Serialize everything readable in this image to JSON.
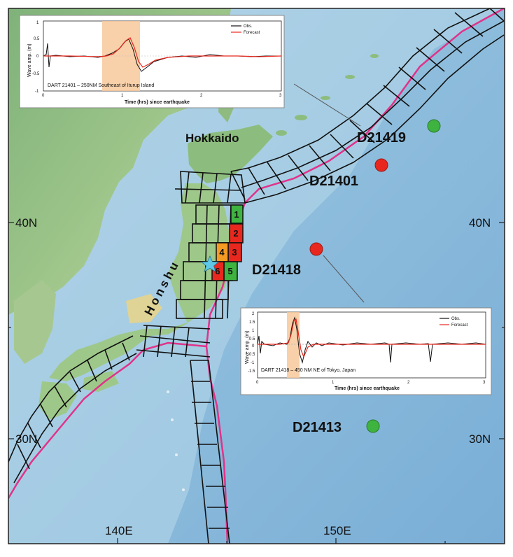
{
  "map": {
    "lat_labels_left": [
      "40N",
      "30N"
    ],
    "lat_labels_right": [
      "40N",
      "30N"
    ],
    "lon_labels_bottom": [
      "140E",
      "150E"
    ],
    "regions": {
      "hokkaido": "Hokkaido",
      "honshu": "Honshu"
    },
    "stations": [
      {
        "id": "D21419",
        "status": "green"
      },
      {
        "id": "D21401",
        "status": "red"
      },
      {
        "id": "D21418",
        "status": "red"
      },
      {
        "id": "D21413",
        "status": "green"
      }
    ],
    "source_segments": [
      {
        "label": "1",
        "color": "#3fb33f"
      },
      {
        "label": "2",
        "color": "#e8281e"
      },
      {
        "label": "3",
        "color": "#e8281e"
      },
      {
        "label": "4",
        "color": "#f59a23"
      },
      {
        "label": "5",
        "color": "#3fb33f"
      },
      {
        "label": "6",
        "color": "#e8281e"
      }
    ],
    "colors": {
      "station_green": "#3fb33f",
      "station_red": "#e8281e",
      "trench": "#e0338a",
      "epicenter": "#5ec8e6"
    },
    "epicenter_icon": "star-icon"
  },
  "inset_top": {
    "title": "DART 21401 – 250NM Southeast of Iturup Island",
    "ylabel": "Wave amp. (m)",
    "xlabel": "Time (hrs) since earthquake",
    "legend": [
      "Obs.",
      "Forecast"
    ],
    "xticks": [
      "0",
      "1",
      "2",
      "3"
    ],
    "yticks": [
      "1",
      "0.5",
      "0",
      "-0.5",
      "-1"
    ]
  },
  "inset_bottom": {
    "title": "DART 21418 – 450 NM NE of Tokyo, Japan",
    "ylabel": "Wave amp. (m)",
    "xlabel": "Time (hrs) since earthquake",
    "legend": [
      "Obs.",
      "Forecast"
    ],
    "xticks": [
      "0",
      "1",
      "2",
      "3"
    ],
    "yticks": [
      "2",
      "1.5",
      "1",
      "0.5",
      "0",
      "-0.5",
      "-1",
      "-1.5"
    ]
  }
}
